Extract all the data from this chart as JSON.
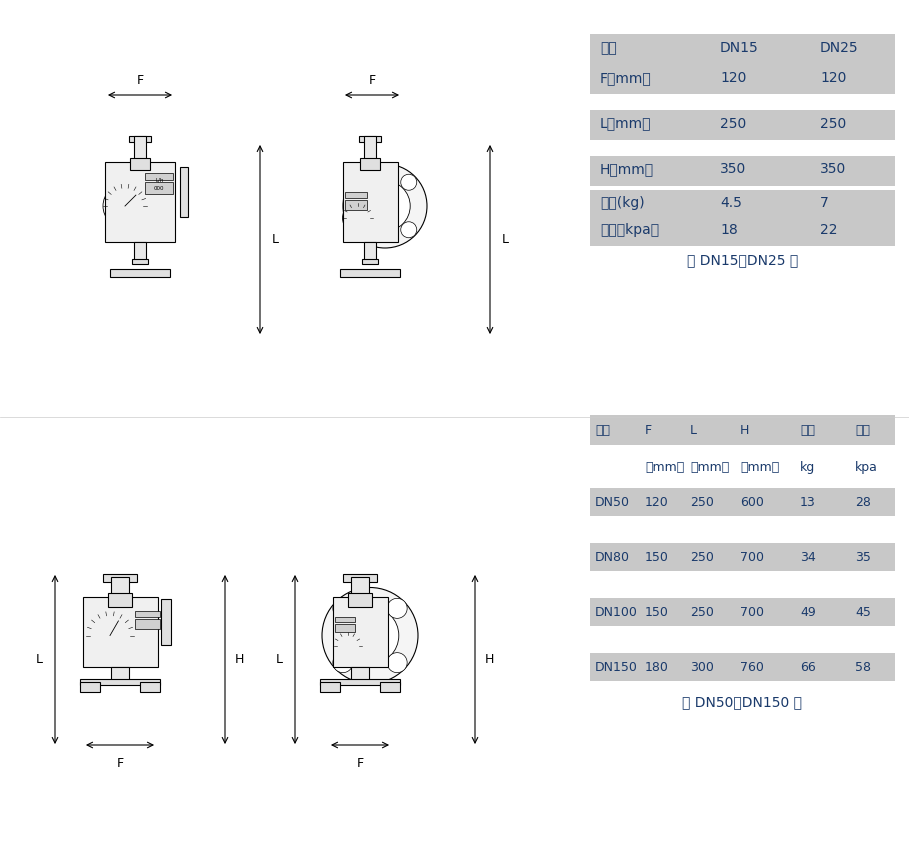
{
  "bg_color": "#ffffff",
  "table_bg": "#c8c8c8",
  "text_color": "#1a3a6b",
  "table_text_color": "#1a3a6b",
  "top_table": {
    "header": [
      "口径",
      "DN15",
      "DN25"
    ],
    "rows": [
      [
        "F（mm）",
        "120",
        "120"
      ],
      [
        "L（mm）",
        "250",
        "250"
      ],
      [
        "H（mm）",
        "350",
        "350"
      ],
      [
        "重量(kg)",
        "4.5",
        "7"
      ],
      [
        "压损（kpa）",
        "18",
        "22"
      ]
    ],
    "caption": "（ DN15～DN25 ）"
  },
  "bottom_table": {
    "header": [
      "口径",
      "F",
      "L",
      "H",
      "重量",
      "压损"
    ],
    "subheader": [
      "",
      "（mm）",
      "（mm）",
      "（mm）",
      "kg",
      "kpa"
    ],
    "rows": [
      [
        "DN50",
        "120",
        "250",
        "600",
        "13",
        "28"
      ],
      [
        "DN80",
        "150",
        "250",
        "700",
        "34",
        "35"
      ],
      [
        "DN100",
        "150",
        "250",
        "700",
        "49",
        "45"
      ],
      [
        "DN150",
        "180",
        "300",
        "760",
        "66",
        "58"
      ]
    ],
    "caption": "（ DN50～DN150 ）"
  }
}
